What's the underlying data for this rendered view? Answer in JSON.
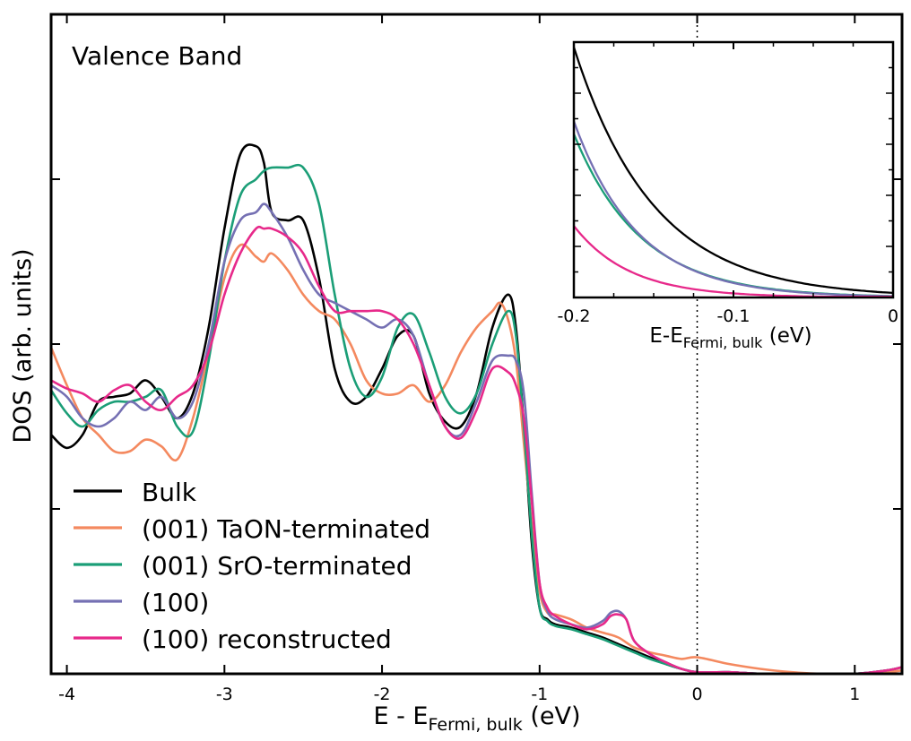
{
  "chart_data": [
    {
      "type": "line",
      "title": "",
      "annotation": "Valence Band",
      "xlabel": {
        "main": "E - E",
        "sub": "Fermi, bulk",
        "unit": " (eV)"
      },
      "ylabel": "DOS (arb. units)",
      "xlim": [
        -4.1,
        1.3
      ],
      "ylim": [
        0,
        4.0
      ],
      "xticks": [
        -4,
        -3,
        -2,
        -1,
        0,
        1
      ],
      "xtick_labels": [
        "-4",
        "-3",
        "-2",
        "-1",
        "0",
        "1"
      ],
      "yticks": [
        1,
        2,
        3
      ],
      "yticks_unlabeled": true,
      "fermi_line_x": 0,
      "legend_position": "bottom-left",
      "series": [
        {
          "name": "Bulk",
          "color": "#000000",
          "x": [
            -4.1,
            -4.0,
            -3.9,
            -3.8,
            -3.7,
            -3.6,
            -3.5,
            -3.4,
            -3.3,
            -3.2,
            -3.1,
            -3.0,
            -2.9,
            -2.8,
            -2.75,
            -2.7,
            -2.6,
            -2.5,
            -2.4,
            -2.3,
            -2.2,
            -2.1,
            -2.0,
            -1.9,
            -1.8,
            -1.7,
            -1.6,
            -1.5,
            -1.4,
            -1.3,
            -1.2,
            -1.15,
            -1.1,
            -1.05,
            -1.0,
            -0.95,
            -0.9,
            -0.8,
            -0.7,
            -0.6,
            -0.5,
            -0.4,
            -0.3,
            -0.2,
            -0.1,
            0.0,
            0.2,
            0.4,
            0.6,
            0.8,
            1.0,
            1.2,
            1.3
          ],
          "y": [
            1.45,
            1.37,
            1.45,
            1.65,
            1.68,
            1.7,
            1.78,
            1.68,
            1.55,
            1.7,
            2.1,
            2.7,
            3.15,
            3.2,
            3.1,
            2.8,
            2.75,
            2.75,
            2.4,
            1.85,
            1.65,
            1.68,
            1.85,
            2.05,
            2.05,
            1.7,
            1.53,
            1.5,
            1.7,
            2.1,
            2.3,
            2.1,
            1.5,
            0.8,
            0.4,
            0.33,
            0.3,
            0.28,
            0.25,
            0.22,
            0.18,
            0.14,
            0.1,
            0.06,
            0.03,
            0.01,
            0.01,
            0.0,
            0.0,
            0.0,
            0.0,
            0.02,
            0.04
          ]
        },
        {
          "name": "(001) TaON-terminated",
          "color": "#f4895f",
          "x": [
            -4.1,
            -4.0,
            -3.9,
            -3.8,
            -3.7,
            -3.6,
            -3.5,
            -3.4,
            -3.3,
            -3.2,
            -3.1,
            -3.0,
            -2.9,
            -2.8,
            -2.75,
            -2.7,
            -2.6,
            -2.5,
            -2.4,
            -2.3,
            -2.2,
            -2.1,
            -2.0,
            -1.9,
            -1.8,
            -1.7,
            -1.6,
            -1.5,
            -1.4,
            -1.3,
            -1.25,
            -1.2,
            -1.15,
            -1.1,
            -1.05,
            -1.0,
            -0.95,
            -0.9,
            -0.8,
            -0.7,
            -0.6,
            -0.5,
            -0.4,
            -0.3,
            -0.2,
            -0.1,
            0.0,
            0.2,
            0.4,
            0.6,
            0.8,
            1.0,
            1.2,
            1.3
          ],
          "y": [
            1.98,
            1.75,
            1.55,
            1.45,
            1.35,
            1.35,
            1.42,
            1.38,
            1.3,
            1.55,
            1.95,
            2.4,
            2.6,
            2.53,
            2.5,
            2.55,
            2.45,
            2.3,
            2.2,
            2.15,
            2.0,
            1.78,
            1.7,
            1.7,
            1.75,
            1.65,
            1.75,
            1.95,
            2.1,
            2.2,
            2.25,
            2.15,
            1.9,
            1.4,
            0.9,
            0.5,
            0.37,
            0.36,
            0.33,
            0.28,
            0.25,
            0.22,
            0.16,
            0.13,
            0.11,
            0.09,
            0.1,
            0.06,
            0.03,
            0.01,
            0.0,
            0.0,
            0.01,
            0.02
          ]
        },
        {
          "name": "(001) SrO-terminated",
          "color": "#1b9e77",
          "x": [
            -4.1,
            -4.0,
            -3.9,
            -3.8,
            -3.7,
            -3.6,
            -3.5,
            -3.4,
            -3.3,
            -3.2,
            -3.1,
            -3.0,
            -2.9,
            -2.8,
            -2.75,
            -2.7,
            -2.6,
            -2.5,
            -2.4,
            -2.3,
            -2.2,
            -2.1,
            -2.0,
            -1.9,
            -1.8,
            -1.7,
            -1.6,
            -1.5,
            -1.4,
            -1.3,
            -1.2,
            -1.15,
            -1.1,
            -1.05,
            -1.0,
            -0.95,
            -0.9,
            -0.8,
            -0.7,
            -0.6,
            -0.5,
            -0.4,
            -0.3,
            -0.2,
            -0.1,
            0.0,
            0.2,
            0.4,
            0.6,
            0.8,
            1.0,
            1.2,
            1.3
          ],
          "y": [
            1.72,
            1.58,
            1.5,
            1.6,
            1.65,
            1.65,
            1.68,
            1.72,
            1.5,
            1.47,
            1.9,
            2.5,
            2.9,
            3.0,
            3.05,
            3.07,
            3.07,
            3.07,
            2.85,
            2.3,
            1.85,
            1.68,
            1.8,
            2.1,
            2.18,
            1.95,
            1.68,
            1.58,
            1.7,
            2.0,
            2.2,
            2.05,
            1.5,
            0.85,
            0.4,
            0.32,
            0.29,
            0.27,
            0.24,
            0.21,
            0.17,
            0.13,
            0.09,
            0.06,
            0.03,
            0.01,
            0.01,
            0.0,
            0.0,
            0.0,
            0.0,
            0.02,
            0.04
          ]
        },
        {
          "name": "(100)",
          "color": "#7570b3",
          "x": [
            -4.1,
            -4.0,
            -3.9,
            -3.8,
            -3.7,
            -3.6,
            -3.5,
            -3.4,
            -3.3,
            -3.2,
            -3.1,
            -3.0,
            -2.9,
            -2.8,
            -2.75,
            -2.7,
            -2.6,
            -2.5,
            -2.4,
            -2.3,
            -2.2,
            -2.1,
            -2.0,
            -1.9,
            -1.8,
            -1.7,
            -1.6,
            -1.5,
            -1.4,
            -1.3,
            -1.2,
            -1.15,
            -1.1,
            -1.05,
            -1.0,
            -0.95,
            -0.9,
            -0.8,
            -0.7,
            -0.6,
            -0.55,
            -0.5,
            -0.45,
            -0.4,
            -0.3,
            -0.2,
            -0.1,
            0.0,
            0.2,
            0.4,
            0.6,
            0.8,
            1.0,
            1.2,
            1.3
          ],
          "y": [
            1.75,
            1.68,
            1.55,
            1.5,
            1.55,
            1.65,
            1.6,
            1.68,
            1.55,
            1.65,
            2.0,
            2.5,
            2.75,
            2.8,
            2.85,
            2.8,
            2.65,
            2.45,
            2.3,
            2.25,
            2.2,
            2.15,
            2.1,
            2.15,
            2.05,
            1.75,
            1.5,
            1.45,
            1.65,
            1.9,
            1.93,
            1.9,
            1.7,
            1.1,
            0.55,
            0.38,
            0.33,
            0.3,
            0.28,
            0.32,
            0.37,
            0.38,
            0.33,
            0.2,
            0.12,
            0.07,
            0.03,
            0.01,
            0.01,
            0.0,
            0.0,
            0.0,
            0.0,
            0.02,
            0.04
          ]
        },
        {
          "name": "(100) reconstructed",
          "color": "#e7298a",
          "x": [
            -4.1,
            -4.0,
            -3.9,
            -3.8,
            -3.7,
            -3.6,
            -3.5,
            -3.4,
            -3.3,
            -3.2,
            -3.1,
            -3.0,
            -2.9,
            -2.8,
            -2.75,
            -2.7,
            -2.6,
            -2.5,
            -2.4,
            -2.3,
            -2.2,
            -2.1,
            -2.0,
            -1.9,
            -1.8,
            -1.7,
            -1.6,
            -1.5,
            -1.4,
            -1.3,
            -1.2,
            -1.15,
            -1.1,
            -1.05,
            -1.0,
            -0.95,
            -0.9,
            -0.8,
            -0.7,
            -0.6,
            -0.55,
            -0.5,
            -0.45,
            -0.4,
            -0.3,
            -0.2,
            -0.1,
            0.0,
            0.2,
            0.4,
            0.6,
            0.8,
            1.0,
            1.2,
            1.3
          ],
          "y": [
            1.78,
            1.73,
            1.7,
            1.65,
            1.72,
            1.75,
            1.65,
            1.6,
            1.68,
            1.75,
            1.95,
            2.3,
            2.55,
            2.7,
            2.7,
            2.7,
            2.65,
            2.55,
            2.35,
            2.2,
            2.2,
            2.2,
            2.2,
            2.15,
            2.0,
            1.75,
            1.5,
            1.43,
            1.6,
            1.85,
            1.83,
            1.75,
            1.55,
            1.05,
            0.55,
            0.4,
            0.35,
            0.3,
            0.27,
            0.3,
            0.35,
            0.36,
            0.33,
            0.2,
            0.12,
            0.07,
            0.03,
            0.01,
            0.01,
            0.0,
            0.0,
            0.0,
            0.0,
            0.02,
            0.04
          ]
        }
      ]
    },
    {
      "type": "line",
      "title": "",
      "xlabel": {
        "main": "E-E",
        "sub": "Fermi, bulk",
        "unit": " (eV)"
      },
      "ylabel": "",
      "xlim": [
        -0.2,
        0
      ],
      "ylim": [
        0,
        1.0
      ],
      "xticks": [
        -0.2,
        -0.1,
        0
      ],
      "xtick_labels": [
        "-0.2",
        "-0.1",
        "0"
      ],
      "series": [
        {
          "name": "Bulk",
          "color": "#000000",
          "y0": 0.98,
          "decay": 0.05
        },
        {
          "name": "(001) SrO-terminated",
          "color": "#1b9e77",
          "y0": 0.64,
          "decay": 0.042
        },
        {
          "name": "(100)",
          "color": "#7570b3",
          "y0": 0.69,
          "decay": 0.04
        },
        {
          "name": "(100) reconstructed",
          "color": "#e7298a",
          "y0": 0.28,
          "decay": 0.035
        }
      ]
    }
  ]
}
